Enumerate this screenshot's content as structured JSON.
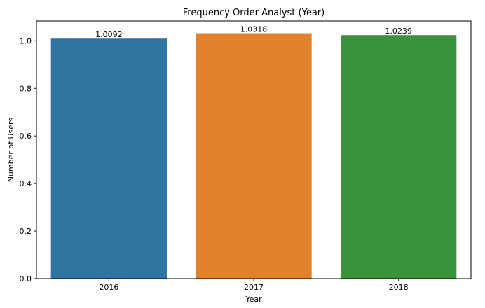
{
  "chart_data": {
    "type": "bar",
    "title": "Frequency Order Analyst (Year)",
    "xlabel": "Year",
    "ylabel": "Number of Users",
    "categories": [
      "2016",
      "2017",
      "2018"
    ],
    "values": [
      1.0092,
      1.0318,
      1.0239
    ],
    "data_labels": [
      "1.0092",
      "1.0318",
      "1.0239"
    ],
    "colors": [
      "#3274a1",
      "#e1812c",
      "#3a923a"
    ],
    "ylim": [
      0,
      1.0834
    ],
    "yticks": [
      0.0,
      0.2,
      0.4,
      0.6,
      0.8,
      1.0
    ],
    "ytick_labels": [
      "0.0",
      "0.2",
      "0.4",
      "0.6",
      "0.8",
      "1.0"
    ],
    "grid": false,
    "legend": "none"
  }
}
